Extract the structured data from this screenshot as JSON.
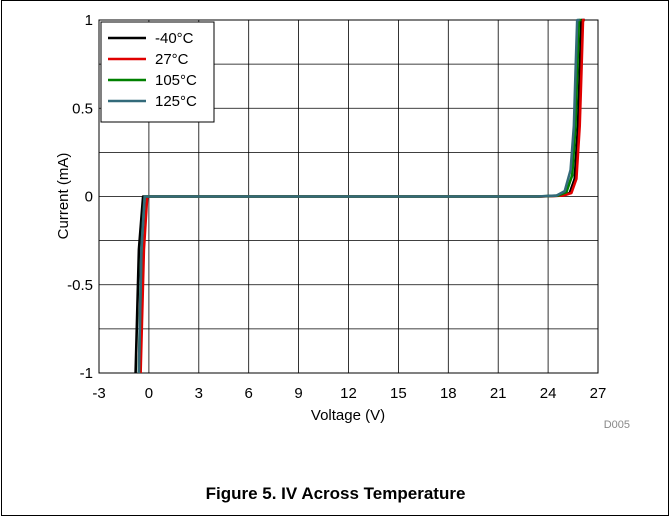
{
  "chart_data": {
    "type": "line",
    "xlabel": "Voltage (V)",
    "ylabel": "Current (mA)",
    "xlim": [
      -3,
      27
    ],
    "ylim": [
      -1,
      1
    ],
    "xticks": [
      "-3",
      "0",
      "3",
      "6",
      "9",
      "12",
      "15",
      "18",
      "21",
      "24",
      "27"
    ],
    "yticks": [
      "1",
      "0.5",
      "0",
      "-0.5",
      "-1"
    ],
    "grid": true,
    "legend_position": "top-left",
    "figure_id": "D005",
    "series": [
      {
        "name": "-40°C",
        "color": "#000000",
        "x": [
          -0.8,
          -0.6,
          -0.35,
          0.5,
          23.5,
          24.8,
          25.3,
          25.6,
          25.8,
          25.9,
          26.0,
          26.2
        ],
        "y": [
          -1.0,
          -0.3,
          0.0,
          0.0,
          0.0,
          0.005,
          0.02,
          0.1,
          0.4,
          0.7,
          1.0,
          1.0
        ]
      },
      {
        "name": "27°C",
        "color": "#e00000",
        "x": [
          -0.5,
          -0.3,
          -0.1,
          0.5,
          23.6,
          24.9,
          25.4,
          25.7,
          25.9,
          26.0,
          26.1,
          26.2
        ],
        "y": [
          -1.0,
          -0.3,
          0.0,
          0.0,
          0.0,
          0.005,
          0.02,
          0.1,
          0.4,
          0.7,
          1.0,
          1.0
        ]
      },
      {
        "name": "105°C",
        "color": "#008000",
        "x": [
          -0.6,
          -0.45,
          -0.25,
          0.5,
          23.4,
          24.6,
          25.1,
          25.45,
          25.65,
          25.75,
          25.85,
          26.0
        ],
        "y": [
          -1.0,
          -0.3,
          0.0,
          0.0,
          0.0,
          0.005,
          0.025,
          0.12,
          0.4,
          0.7,
          1.0,
          1.0
        ]
      },
      {
        "name": "125°C",
        "color": "#336a7a",
        "x": [
          -0.6,
          -0.45,
          -0.25,
          0.5,
          23.3,
          24.5,
          25.0,
          25.35,
          25.55,
          25.65,
          25.75,
          25.9
        ],
        "y": [
          -1.0,
          -0.3,
          0.0,
          0.0,
          0.0,
          0.005,
          0.03,
          0.15,
          0.4,
          0.7,
          1.0,
          1.0
        ]
      }
    ]
  },
  "caption": "Figure 5. IV Across Temperature"
}
